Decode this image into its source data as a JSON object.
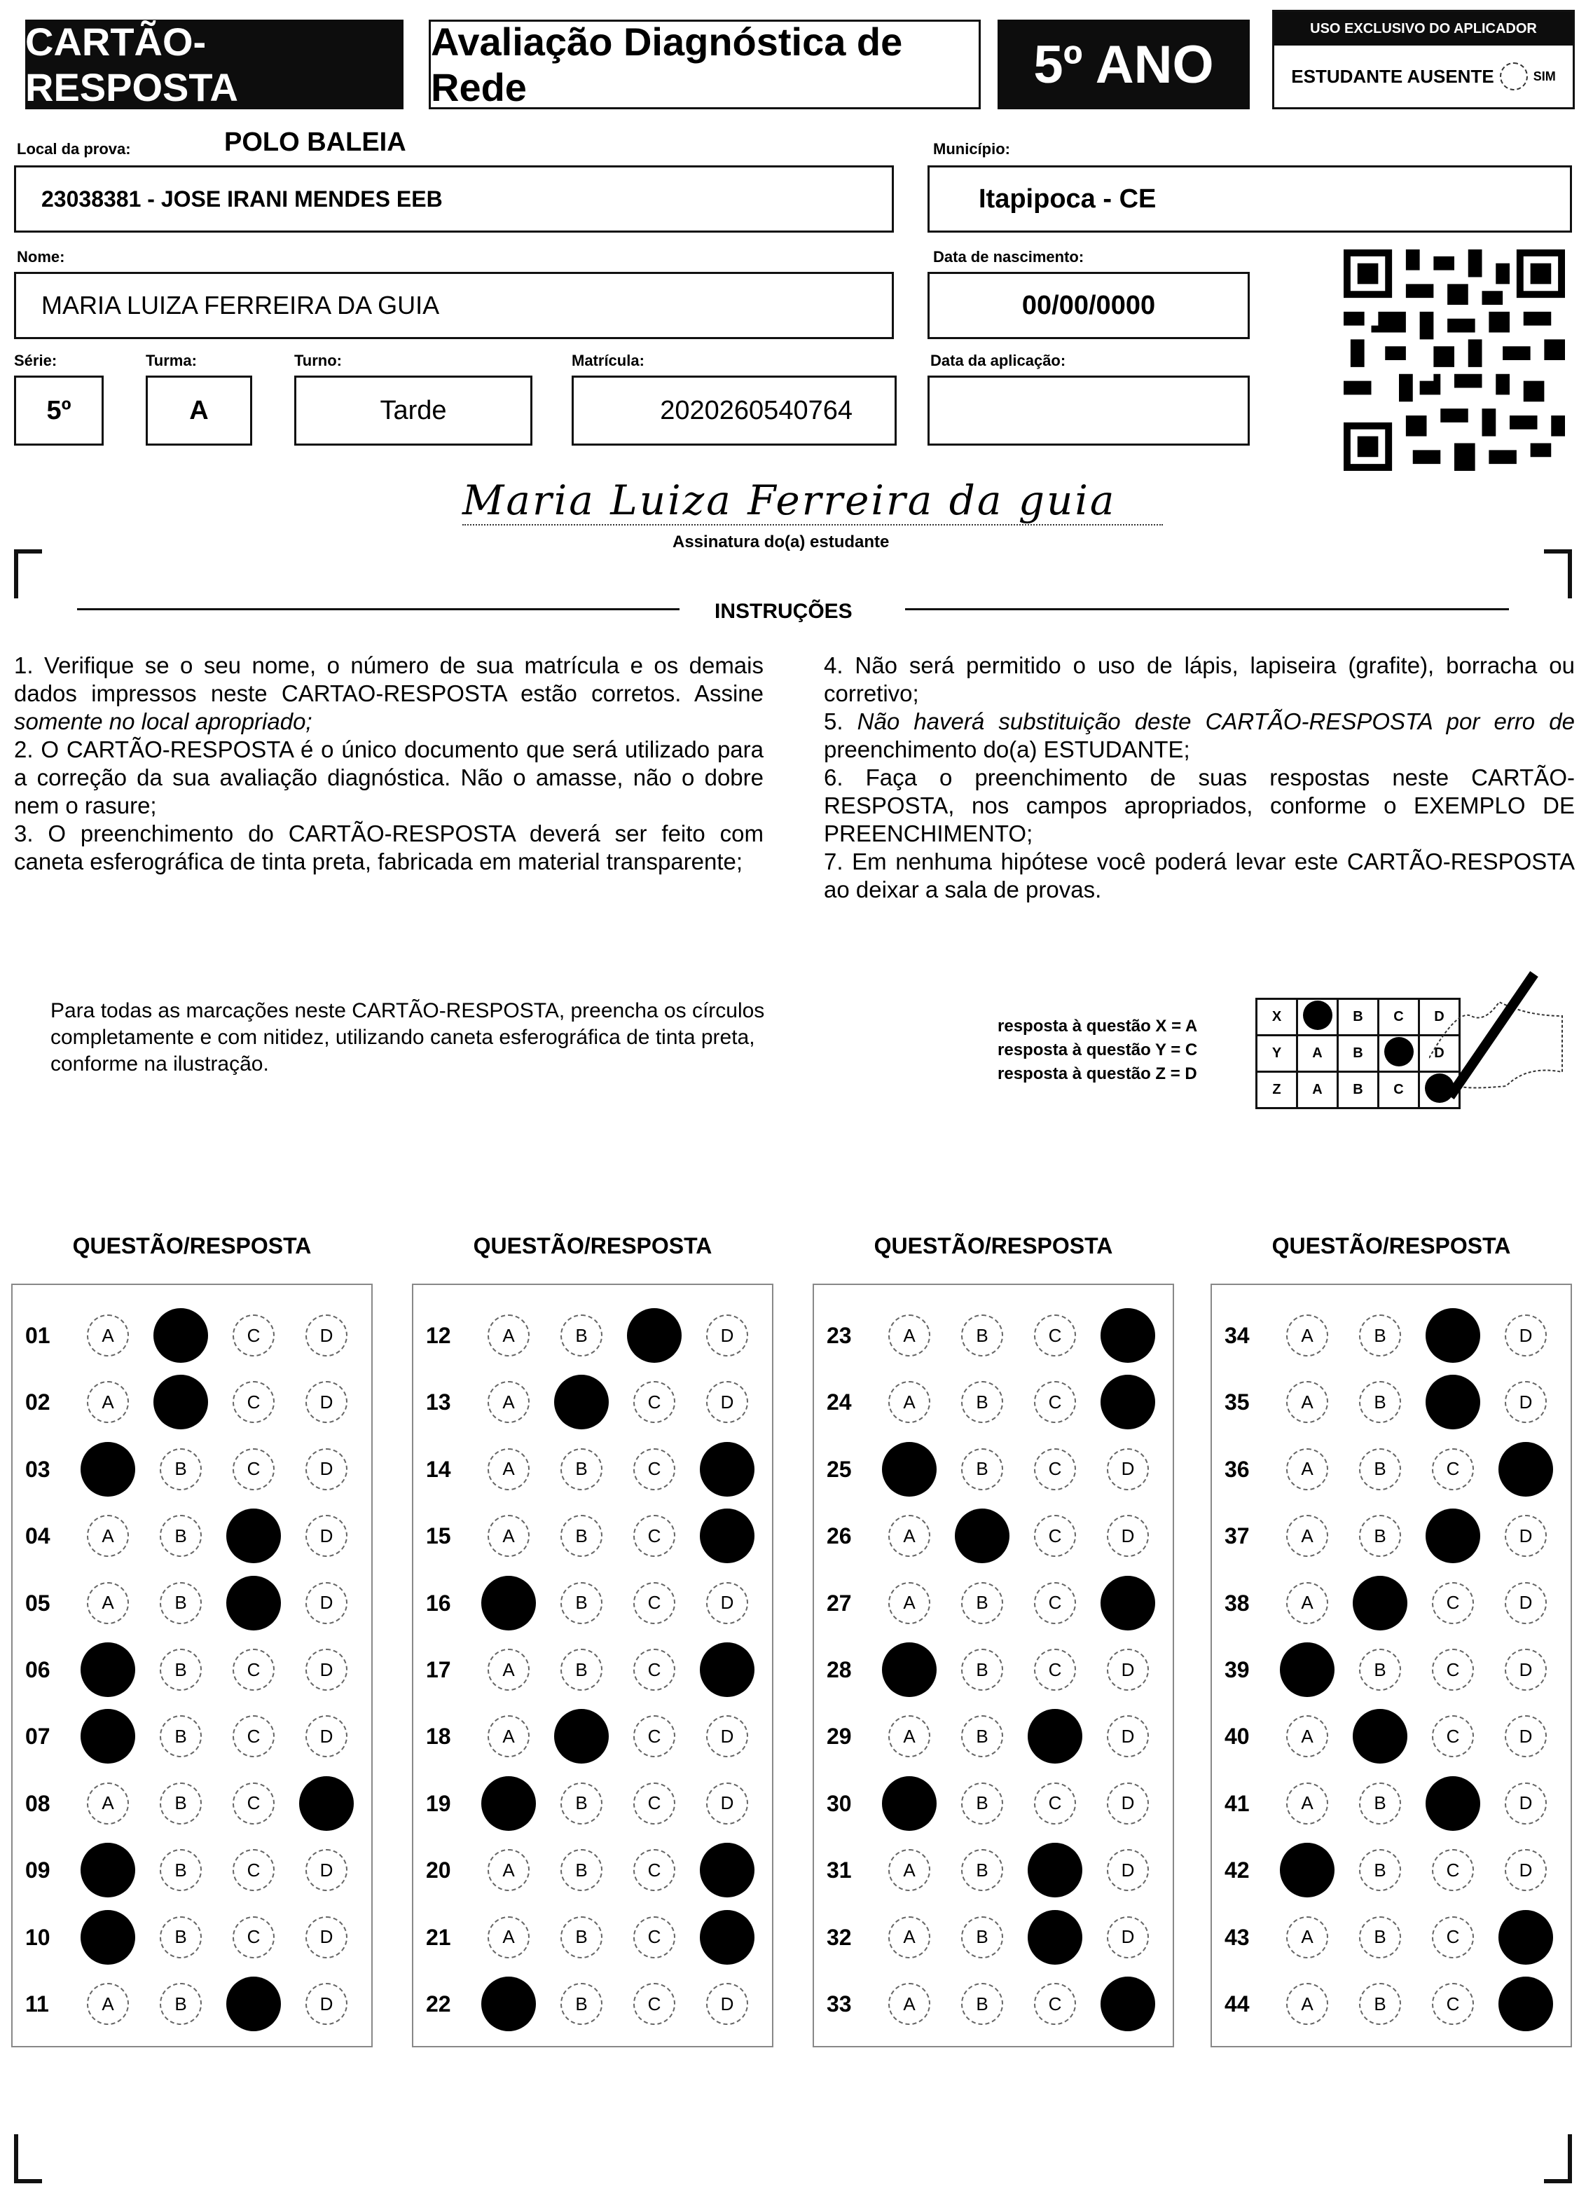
{
  "header": {
    "title": "CARTÃO-RESPOSTA",
    "subtitle": "Avaliação Diagnóstica de Rede",
    "grade": "5º ANO",
    "applicator_label": "USO EXCLUSIVO DO APLICADOR",
    "absent_label": "ESTUDANTE AUSENTE",
    "absent_option": "SIM"
  },
  "fields": {
    "local_label": "Local da prova:",
    "local_value": "POLO BALEIA",
    "school": "23038381 - JOSE IRANI MENDES EEB",
    "municipio_label": "Município:",
    "municipio": "Itapipoca - CE",
    "nome_label": "Nome:",
    "nome": "MARIA LUIZA FERREIRA DA GUIA",
    "nascimento_label": "Data de nascimento:",
    "nascimento": "00/00/0000",
    "serie_label": "Série:",
    "serie": "5º",
    "turma_label": "Turma:",
    "turma": "A",
    "turno_label": "Turno:",
    "turno": "Tarde",
    "matricula_label": "Matrícula:",
    "matricula": "2020260540764",
    "aplicacao_label": "Data da aplicação:",
    "aplicacao": ""
  },
  "signature": {
    "text": "Maria Luiza Ferreira da guia",
    "label": "Assinatura do(a) estudante"
  },
  "instructions": {
    "title": "INSTRUÇÕES",
    "i1a": "1. Verifique se o seu nome, o número de sua matrícula e os demais dados impressos neste CARTAO-RESPOSTA estão corretos. Assine ",
    "i1b": "somente no local apropriado;",
    "i2": "2. O CARTÃO-RESPOSTA é o único documento que será utilizado para a correção da sua avaliação diagnóstica. Não o amasse, não o dobre nem o rasure;",
    "i3": "3. O preenchimento do CARTÃO-RESPOSTA deverá ser feito com caneta esferográfica de tinta preta, fabricada em material transparente;",
    "i4": "4. Não será permitido o uso de lápis, lapiseira (grafite), borracha ou corretivo;",
    "i5a": "5. ",
    "i5b": "Não haverá substituição deste CARTÃO-RESPOSTA por erro de",
    "i5c": " preenchimento do(a) ESTUDANTE;",
    "i6": "6. Faça o preenchimento de suas respostas neste CARTÃO-RESPOSTA, nos campos apropriados, conforme o EXEMPLO DE PREENCHIMENTO;",
    "i7": "7. Em nenhuma hipótese você poderá levar este CARTÃO-RESPOSTA ao deixar a sala de provas."
  },
  "fill_note": "Para todas as marcações neste CARTÃO-RESPOSTA, preencha os círculos completamente e com nitidez, utilizando caneta esferográfica de tinta preta, conforme na ilustração.",
  "example": {
    "lines": [
      "resposta à questão X = A",
      "resposta à questão Y = C",
      "resposta à questão Z = D"
    ],
    "rows": [
      {
        "q": "X",
        "answer": "A"
      },
      {
        "q": "Y",
        "answer": "C"
      },
      {
        "q": "Z",
        "answer": "D"
      }
    ]
  },
  "column_header": "QUESTÃO/RESPOSTA",
  "options": [
    "A",
    "B",
    "C",
    "D"
  ],
  "answers": [
    [
      "01",
      "B"
    ],
    [
      "02",
      "B"
    ],
    [
      "03",
      "A"
    ],
    [
      "04",
      "C"
    ],
    [
      "05",
      "C"
    ],
    [
      "06",
      "A"
    ],
    [
      "07",
      "A"
    ],
    [
      "08",
      "D"
    ],
    [
      "09",
      "A"
    ],
    [
      "10",
      "A"
    ],
    [
      "11",
      "C"
    ],
    [
      "12",
      "C"
    ],
    [
      "13",
      "B"
    ],
    [
      "14",
      "D"
    ],
    [
      "15",
      "D"
    ],
    [
      "16",
      "A"
    ],
    [
      "17",
      "D"
    ],
    [
      "18",
      "B"
    ],
    [
      "19",
      "A"
    ],
    [
      "20",
      "D"
    ],
    [
      "21",
      "D"
    ],
    [
      "22",
      "A"
    ],
    [
      "23",
      "D"
    ],
    [
      "24",
      "D"
    ],
    [
      "25",
      "A"
    ],
    [
      "26",
      "B"
    ],
    [
      "27",
      "D"
    ],
    [
      "28",
      "A"
    ],
    [
      "29",
      "C"
    ],
    [
      "30",
      "A"
    ],
    [
      "31",
      "C"
    ],
    [
      "32",
      "C"
    ],
    [
      "33",
      "D"
    ],
    [
      "34",
      "C"
    ],
    [
      "35",
      "C"
    ],
    [
      "36",
      "D"
    ],
    [
      "37",
      "C"
    ],
    [
      "38",
      "B"
    ],
    [
      "39",
      "A"
    ],
    [
      "40",
      "B"
    ],
    [
      "41",
      "C"
    ],
    [
      "42",
      "A"
    ],
    [
      "43",
      "D"
    ],
    [
      "44",
      "D"
    ]
  ]
}
